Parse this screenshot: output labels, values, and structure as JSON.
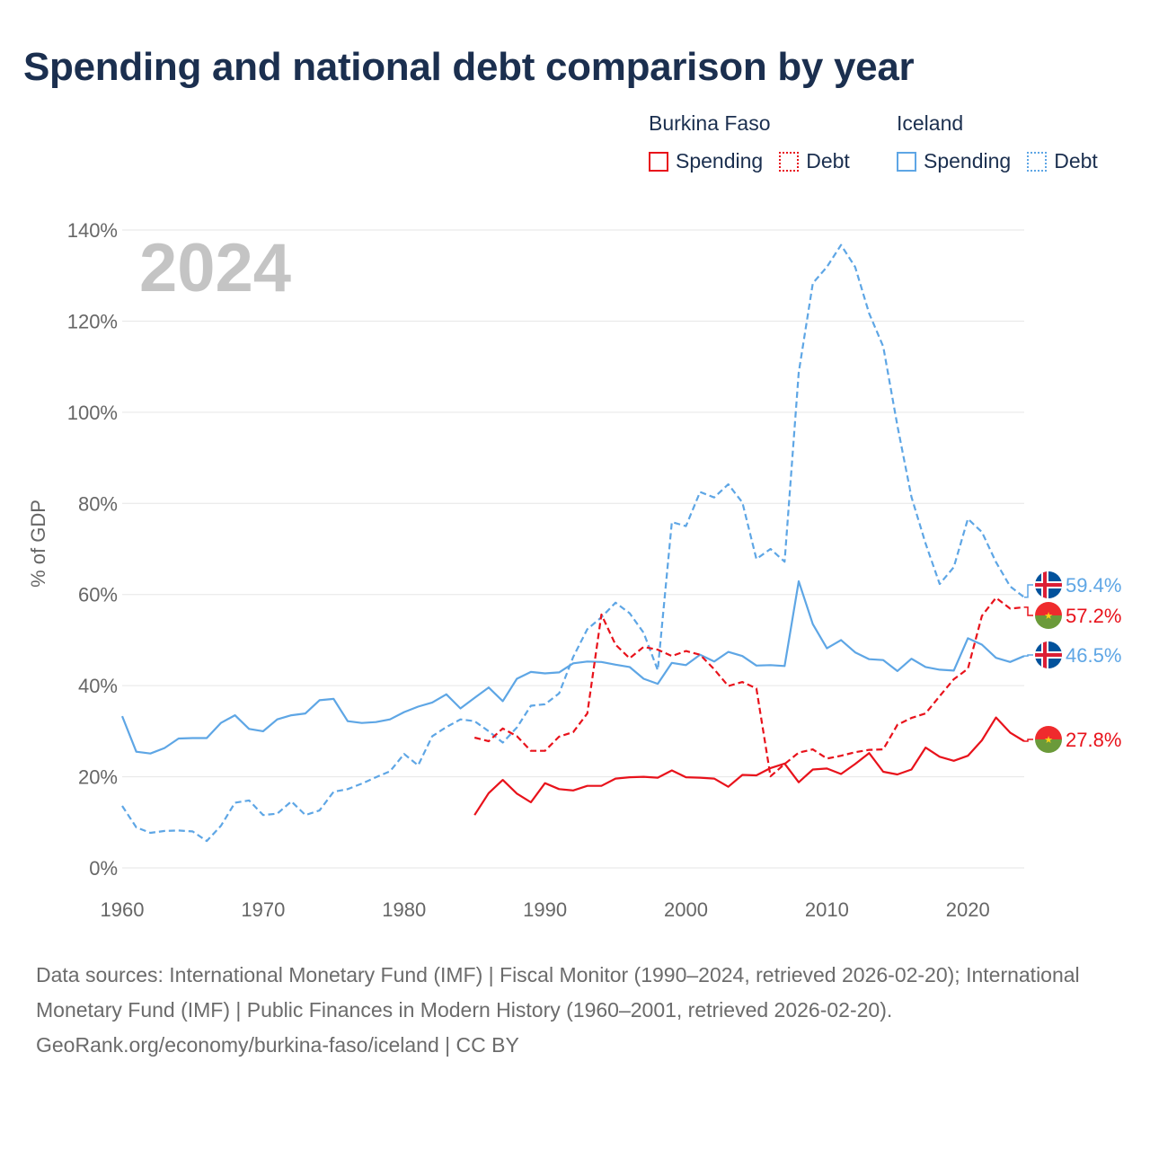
{
  "title": "Spending and national debt comparison by year",
  "legend": {
    "countries": [
      {
        "name": "Burkina Faso",
        "color": "#e8121b",
        "items": [
          {
            "label": "Spending",
            "style": "solid"
          },
          {
            "label": "Debt",
            "style": "dotted"
          }
        ]
      },
      {
        "name": "Iceland",
        "color": "#5ea6e5",
        "items": [
          {
            "label": "Spending",
            "style": "solid"
          },
          {
            "label": "Debt",
            "style": "dotted"
          }
        ]
      }
    ]
  },
  "year_label": "2024",
  "end_labels": [
    {
      "text": "59.4%",
      "color": "#5ea6e5",
      "flag": "iceland-flag-icon"
    },
    {
      "text": "57.2%",
      "color": "#e8121b",
      "flag": "burkina-faso-flag-icon"
    },
    {
      "text": "46.5%",
      "color": "#5ea6e5",
      "flag": "iceland-flag-icon"
    },
    {
      "text": "27.8%",
      "color": "#e8121b",
      "flag": "burkina-faso-flag-icon"
    }
  ],
  "chart_data": {
    "type": "line",
    "title": "Spending and national debt comparison by year",
    "xlabel": "",
    "ylabel": "% of GDP",
    "xlim": [
      1960,
      2024
    ],
    "ylim": [
      0,
      140
    ],
    "x_ticks": [
      1960,
      1970,
      1980,
      1990,
      2000,
      2010,
      2020
    ],
    "y_ticks": [
      0,
      20,
      40,
      60,
      80,
      100,
      120,
      140
    ],
    "y_tick_labels": [
      "0%",
      "20%",
      "40%",
      "60%",
      "80%",
      "100%",
      "120%",
      "140%"
    ],
    "grid": true,
    "series": [
      {
        "name": "Iceland Spending",
        "country": "Iceland",
        "measure": "Spending",
        "style": "solid",
        "color": "#5ea6e5",
        "x": [
          1960,
          1961,
          1962,
          1963,
          1964,
          1965,
          1966,
          1967,
          1968,
          1969,
          1970,
          1971,
          1972,
          1973,
          1974,
          1975,
          1976,
          1977,
          1978,
          1979,
          1980,
          1981,
          1982,
          1983,
          1984,
          1985,
          1986,
          1987,
          1988,
          1989,
          1990,
          1991,
          1992,
          1993,
          1994,
          1995,
          1996,
          1997,
          1998,
          1999,
          2000,
          2001,
          2002,
          2003,
          2004,
          2005,
          2006,
          2007,
          2008,
          2009,
          2010,
          2011,
          2012,
          2013,
          2014,
          2015,
          2016,
          2017,
          2018,
          2019,
          2020,
          2021,
          2022,
          2023,
          2024
        ],
        "values": [
          33.3,
          25.5,
          25.1,
          26.3,
          28.4,
          28.5,
          28.5,
          31.8,
          33.5,
          30.5,
          30.0,
          32.6,
          33.5,
          33.9,
          36.8,
          37.1,
          32.2,
          31.8,
          32.0,
          32.6,
          34.2,
          35.4,
          36.3,
          38.1,
          35.0,
          37.3,
          39.6,
          36.6,
          41.5,
          43.0,
          42.7,
          42.9,
          44.9,
          45.3,
          45.2,
          44.6,
          44.1,
          41.5,
          40.4,
          45.0,
          44.5,
          46.8,
          45.3,
          47.4,
          46.5,
          44.4,
          44.5,
          44.3,
          62.9,
          53.5,
          48.2,
          50.0,
          47.3,
          45.8,
          45.6,
          43.2,
          45.9,
          44.1,
          43.5,
          43.3,
          50.4,
          49.0,
          46.1,
          45.2,
          46.5
        ]
      },
      {
        "name": "Iceland Debt",
        "country": "Iceland",
        "measure": "Debt",
        "style": "dashed",
        "color": "#5ea6e5",
        "x": [
          1960,
          1961,
          1962,
          1963,
          1964,
          1965,
          1966,
          1967,
          1968,
          1969,
          1970,
          1971,
          1972,
          1973,
          1974,
          1975,
          1976,
          1977,
          1978,
          1979,
          1980,
          1981,
          1982,
          1983,
          1984,
          1985,
          1986,
          1987,
          1988,
          1989,
          1990,
          1991,
          1992,
          1993,
          1994,
          1995,
          1996,
          1997,
          1998,
          1999,
          2000,
          2001,
          2002,
          2003,
          2004,
          2005,
          2006,
          2007,
          2008,
          2009,
          2010,
          2011,
          2012,
          2013,
          2014,
          2015,
          2016,
          2017,
          2018,
          2019,
          2020,
          2021,
          2022,
          2023,
          2024
        ],
        "values": [
          13.6,
          8.9,
          7.7,
          8.1,
          8.2,
          8.0,
          5.9,
          9.2,
          14.3,
          14.8,
          11.6,
          11.9,
          14.6,
          11.6,
          12.6,
          16.7,
          17.3,
          18.5,
          19.9,
          21.2,
          25.0,
          22.5,
          28.9,
          30.9,
          32.6,
          32.2,
          30.0,
          27.5,
          30.8,
          35.6,
          35.9,
          38.3,
          46.3,
          52.4,
          55.0,
          58.2,
          55.9,
          51.6,
          43.4,
          75.9,
          75.0,
          82.5,
          81.3,
          84.2,
          80.2,
          67.8,
          70.0,
          67.2,
          108.7,
          128.3,
          131.9,
          136.7,
          131.9,
          121.7,
          114.4,
          97.1,
          81.4,
          71.2,
          62.3,
          66.0,
          76.6,
          73.7,
          67.1,
          61.8,
          59.4
        ]
      },
      {
        "name": "Burkina Faso Spending",
        "country": "Burkina Faso",
        "measure": "Spending",
        "style": "solid",
        "color": "#e8121b",
        "x": [
          1985,
          1986,
          1987,
          1988,
          1989,
          1990,
          1991,
          1992,
          1993,
          1994,
          1995,
          1996,
          1997,
          1998,
          1999,
          2000,
          2001,
          2002,
          2003,
          2004,
          2005,
          2006,
          2007,
          2008,
          2009,
          2010,
          2011,
          2012,
          2013,
          2014,
          2015,
          2016,
          2017,
          2018,
          2019,
          2020,
          2021,
          2022,
          2023,
          2024
        ],
        "values": [
          11.6,
          16.4,
          19.3,
          16.3,
          14.4,
          18.6,
          17.3,
          17.0,
          18.0,
          18.0,
          19.6,
          19.9,
          20.0,
          19.8,
          21.4,
          19.9,
          19.8,
          19.6,
          17.8,
          20.4,
          20.3,
          21.9,
          22.9,
          18.8,
          21.6,
          21.8,
          20.6,
          22.8,
          25.2,
          21.1,
          20.5,
          21.6,
          26.4,
          24.4,
          23.5,
          24.6,
          28.0,
          33.0,
          29.7,
          27.8
        ]
      },
      {
        "name": "Burkina Faso Debt",
        "country": "Burkina Faso",
        "measure": "Debt",
        "style": "dashed",
        "color": "#e8121b",
        "x": [
          1985,
          1986,
          1987,
          1988,
          1989,
          1990,
          1991,
          1992,
          1993,
          1994,
          1995,
          1996,
          1997,
          1998,
          1999,
          2000,
          2001,
          2002,
          2003,
          2004,
          2005,
          2006,
          2007,
          2008,
          2009,
          2010,
          2011,
          2012,
          2013,
          2014,
          2015,
          2016,
          2017,
          2018,
          2019,
          2020,
          2021,
          2022,
          2023,
          2024
        ],
        "values": [
          28.6,
          27.8,
          30.6,
          28.9,
          25.7,
          25.7,
          28.8,
          29.8,
          33.9,
          55.6,
          49.0,
          46.0,
          48.5,
          47.9,
          46.5,
          47.6,
          46.8,
          43.6,
          39.9,
          40.8,
          39.4,
          20.1,
          22.8,
          25.3,
          26.0,
          24.0,
          24.6,
          25.4,
          25.9,
          26.0,
          31.4,
          32.9,
          33.9,
          37.7,
          41.4,
          43.7,
          55.3,
          59.3,
          56.9,
          57.2
        ]
      }
    ]
  },
  "footer": {
    "sources": "Data sources: International Monetary Fund (IMF) | Fiscal Monitor (1990–2024, retrieved 2026-02-20); International Monetary Fund (IMF) | Public Finances in Modern History (1960–2001, retrieved 2026-02-20).",
    "credit": "GeoRank.org/economy/burkina-faso/iceland | CC BY"
  }
}
